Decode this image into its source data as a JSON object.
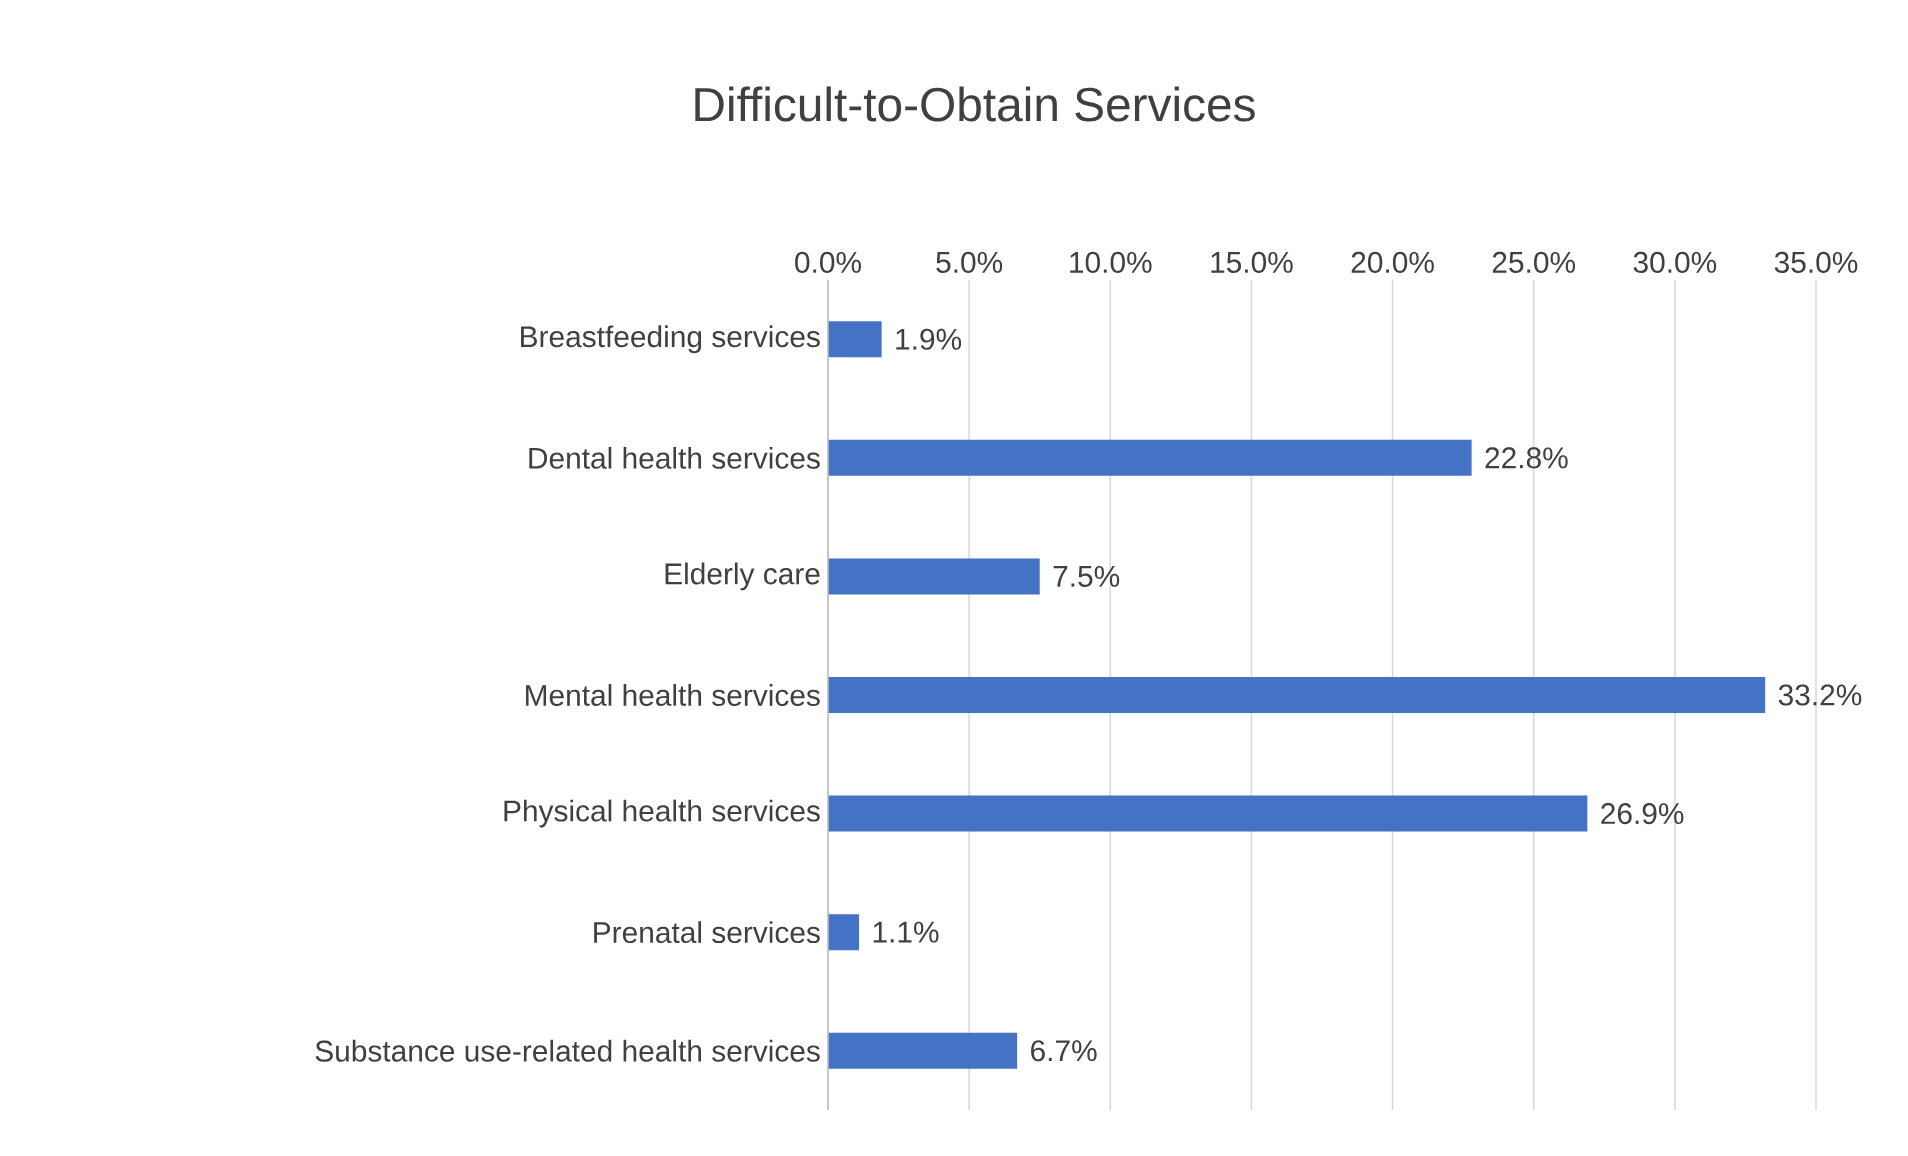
{
  "chart_data": {
    "type": "bar",
    "orientation": "horizontal",
    "title": "Difficult-to-Obtain Services",
    "categories": [
      "Breastfeeding services",
      "Dental health services",
      "Elderly care",
      "Mental health services",
      "Physical health services",
      "Prenatal services",
      "Substance use-related health services"
    ],
    "values": [
      1.9,
      22.8,
      7.5,
      33.2,
      26.9,
      1.1,
      6.7
    ],
    "value_labels": [
      "1.9%",
      "22.8%",
      "7.5%",
      "33.2%",
      "26.9%",
      "1.1%",
      "6.7%"
    ],
    "color": "#4472c4",
    "xlim": [
      0,
      35
    ],
    "xticks": [
      {
        "value": 0,
        "label": "0.0%"
      },
      {
        "value": 5,
        "label": "5.0%"
      },
      {
        "value": 10,
        "label": "10.0%"
      },
      {
        "value": 15,
        "label": "15.0%"
      },
      {
        "value": 20,
        "label": "20.0%"
      },
      {
        "value": 25,
        "label": "25.0%"
      },
      {
        "value": 30,
        "label": "30.0%"
      },
      {
        "value": 35,
        "label": "35.0%"
      }
    ],
    "grid": "x"
  }
}
